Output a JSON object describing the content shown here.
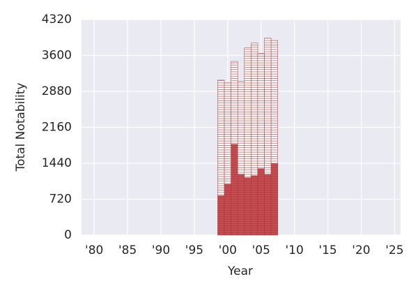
{
  "chart_data": {
    "type": "stacked_bar",
    "x_label": "Year",
    "y_label": "Total Notability",
    "x": [
      1999,
      2000,
      2001,
      2002,
      2003,
      2004,
      2005,
      2006,
      2007
    ],
    "series": [
      {
        "color": "#c44e52",
        "values": [
          790,
          1020,
          1820,
          1220,
          1150,
          1190,
          1330,
          1220,
          1430
        ]
      },
      {
        "color": "#ffffff",
        "values": [
          2315,
          2030,
          1660,
          1860,
          2600,
          2660,
          2310,
          2725,
          2470
        ]
      }
    ],
    "xlim": [
      1978.1,
      2025.9
    ],
    "xticks": [
      {
        "value": 1980,
        "label": "'80"
      },
      {
        "value": 1985,
        "label": "'85"
      },
      {
        "value": 1990,
        "label": "'90"
      },
      {
        "value": 1995,
        "label": "'95"
      },
      {
        "value": 2000,
        "label": "'00"
      },
      {
        "value": 2005,
        "label": "'05"
      },
      {
        "value": 2010,
        "label": "'10"
      },
      {
        "value": 2015,
        "label": "'15"
      },
      {
        "value": 2020,
        "label": "'20"
      },
      {
        "value": 2025,
        "label": "'25"
      }
    ],
    "ylim": [
      0,
      4320
    ],
    "yticks": [
      0,
      720,
      1440,
      2160,
      2880,
      3600,
      4320
    ],
    "grid": true
  }
}
